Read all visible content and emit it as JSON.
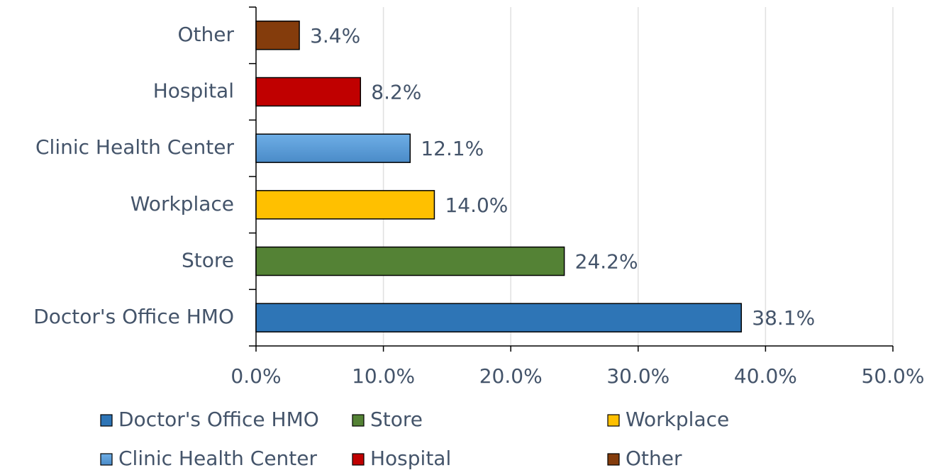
{
  "chart_data": {
    "type": "bar",
    "orientation": "horizontal",
    "categories": [
      "Doctor's Office HMO",
      "Store",
      "Workplace",
      "Clinic Health Center",
      "Hospital",
      "Other"
    ],
    "values": [
      38.1,
      24.2,
      14.0,
      12.1,
      8.2,
      3.4
    ],
    "value_labels": [
      "38.1%",
      "24.2%",
      "14.0%",
      "12.1%",
      "8.2%",
      "3.4%"
    ],
    "colors": [
      "#2e75b6",
      "#548235",
      "#ffc000",
      "#5b9bd5",
      "#c00000",
      "#843c0c"
    ],
    "xlim": [
      0,
      50
    ],
    "xticks": [
      {
        "value": 0,
        "label": "0.0%"
      },
      {
        "value": 10,
        "label": "10.0%"
      },
      {
        "value": 20,
        "label": "20.0%"
      },
      {
        "value": 30,
        "label": "30.0%"
      },
      {
        "value": 40,
        "label": "40.0%"
      },
      {
        "value": 50,
        "label": "50.0%"
      }
    ],
    "grid": true,
    "legend": "bottom"
  }
}
